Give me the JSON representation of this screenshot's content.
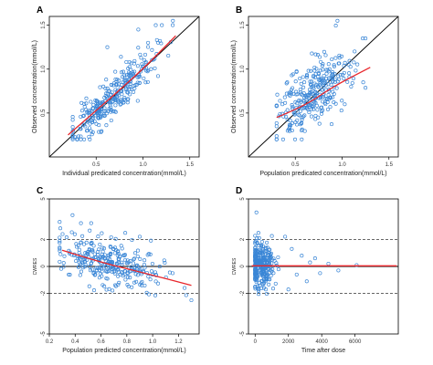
{
  "colors": {
    "points": "#3a86d6",
    "smooth": "#e8262b",
    "reference": "#000000",
    "dashed": "#333333"
  },
  "chart_data": [
    {
      "panel": "A",
      "type": "scatter",
      "xlabel": "Individual predicated concentration(mmol/L)",
      "ylabel": "Observed concentration(mmol/L)",
      "xlim": [
        0,
        1.6
      ],
      "ylim": [
        0,
        1.6
      ],
      "xticks": [
        0.5,
        1.0,
        1.5
      ],
      "xtick_labels": [
        "0.5",
        "1.0",
        "1.5"
      ],
      "yticks": [
        0.5,
        1.0,
        1.5
      ],
      "ytick_labels": [
        "0.5",
        "1.0",
        "1.5"
      ],
      "identity_line": true,
      "smooth": {
        "x": [
          0.2,
          0.6,
          1.0,
          1.35
        ],
        "y": [
          0.25,
          0.62,
          1.0,
          1.38
        ]
      },
      "cloud": {
        "seed": 11,
        "n": 300,
        "x_center": 0.68,
        "x_sd": 0.22,
        "x_range": [
          0.25,
          1.35
        ],
        "slope": 1.0,
        "intercept": 0.0,
        "noise_sd": 0.12,
        "y_range": [
          0.2,
          1.5
        ]
      },
      "points": [
        [
          0.95,
          1.45
        ],
        [
          1.32,
          1.55
        ],
        [
          0.62,
          1.25
        ],
        [
          0.3,
          0.2
        ]
      ]
    },
    {
      "panel": "B",
      "type": "scatter",
      "xlabel": "Population predicated concentration(mmol/L)",
      "ylabel": "Observed concentration(mmol/L)",
      "xlim": [
        0,
        1.6
      ],
      "ylim": [
        0,
        1.6
      ],
      "xticks": [
        0.5,
        1.0,
        1.5
      ],
      "xtick_labels": [
        "0.5",
        "1.0",
        "1.5"
      ],
      "yticks": [
        0.5,
        1.0,
        1.5
      ],
      "ytick_labels": [
        "0.5",
        "1.0",
        "1.5"
      ],
      "identity_line": true,
      "smooth": {
        "x": [
          0.3,
          0.6,
          0.9,
          1.3
        ],
        "y": [
          0.45,
          0.58,
          0.8,
          1.02
        ]
      },
      "cloud": {
        "seed": 23,
        "n": 300,
        "x_center": 0.68,
        "x_sd": 0.2,
        "x_range": [
          0.3,
          1.25
        ],
        "slope": 0.7,
        "intercept": 0.22,
        "noise_sd": 0.19,
        "y_range": [
          0.2,
          1.5
        ]
      },
      "points": [
        [
          0.95,
          1.55
        ],
        [
          1.25,
          1.35
        ],
        [
          1.22,
          1.35
        ]
      ]
    },
    {
      "panel": "C",
      "type": "scatter",
      "xlabel": "Population predicted concentration(mmol/L)",
      "ylabel": "CWRES",
      "xlim": [
        0.2,
        1.36
      ],
      "ylim": [
        -5,
        5
      ],
      "xticks": [
        0.2,
        0.4,
        0.6,
        0.8,
        1.0,
        1.2
      ],
      "xtick_labels": [
        "0.2",
        "0.4",
        "0.6",
        "0.8",
        "1.0",
        "1.2"
      ],
      "yticks": [
        -5,
        -2,
        0,
        2,
        5
      ],
      "ytick_labels": [
        "-5",
        "-2",
        "0",
        "2",
        "5"
      ],
      "hlines": [
        {
          "y": 0,
          "style": "solid"
        },
        {
          "y": 2,
          "style": "dashed"
        },
        {
          "y": -2,
          "style": "dashed"
        }
      ],
      "smooth": {
        "x": [
          0.3,
          0.6,
          0.9,
          1.3
        ],
        "y": [
          1.2,
          0.3,
          -0.4,
          -1.4
        ]
      },
      "cloud": {
        "seed": 37,
        "n": 300,
        "x_center": 0.68,
        "x_sd": 0.2,
        "x_range": [
          0.28,
          1.32
        ],
        "slope": -2.4,
        "intercept": 1.9,
        "noise_sd": 0.85,
        "y_range": [
          -2.8,
          3.2
        ]
      },
      "points": [
        [
          0.38,
          3.8
        ],
        [
          0.28,
          3.3
        ],
        [
          0.9,
          2.2
        ],
        [
          1.3,
          -2.5
        ]
      ]
    },
    {
      "panel": "D",
      "type": "scatter",
      "xlabel": "Time after dose",
      "ylabel": "CWRES",
      "xlim": [
        -400,
        8600
      ],
      "ylim": [
        -5,
        5
      ],
      "xticks": [
        0,
        2000,
        4000,
        6000
      ],
      "xtick_labels": [
        "0",
        "2000",
        "4000",
        "6000"
      ],
      "yticks": [
        -5,
        -2,
        0,
        2,
        5
      ],
      "ytick_labels": [
        "-5",
        "-2",
        "0",
        "2",
        "5"
      ],
      "hlines": [
        {
          "y": 0,
          "style": "solid"
        },
        {
          "y": 2,
          "style": "dashed"
        },
        {
          "y": -2,
          "style": "dashed"
        }
      ],
      "smooth": {
        "x": [
          -200,
          8500
        ],
        "y": [
          0.05,
          0.05
        ]
      },
      "cloud": {
        "seed": 51,
        "n": 300,
        "x_center": 300,
        "x_sd": 380,
        "x_range": [
          0,
          1500
        ],
        "slope": 0,
        "intercept": 0,
        "noise_sd": 0.85,
        "y_range": [
          -3,
          3.6
        ]
      },
      "points": [
        [
          2200,
          1.3
        ],
        [
          2500,
          -0.6
        ],
        [
          2800,
          0.8
        ],
        [
          3100,
          -1.1
        ],
        [
          3300,
          0.3
        ],
        [
          3600,
          0.6
        ],
        [
          3900,
          -0.5
        ],
        [
          4400,
          0.2
        ],
        [
          5000,
          -0.3
        ],
        [
          6100,
          0.1
        ],
        [
          2000,
          -1.7
        ],
        [
          1800,
          2.2
        ],
        [
          80,
          4.0
        ]
      ]
    }
  ]
}
